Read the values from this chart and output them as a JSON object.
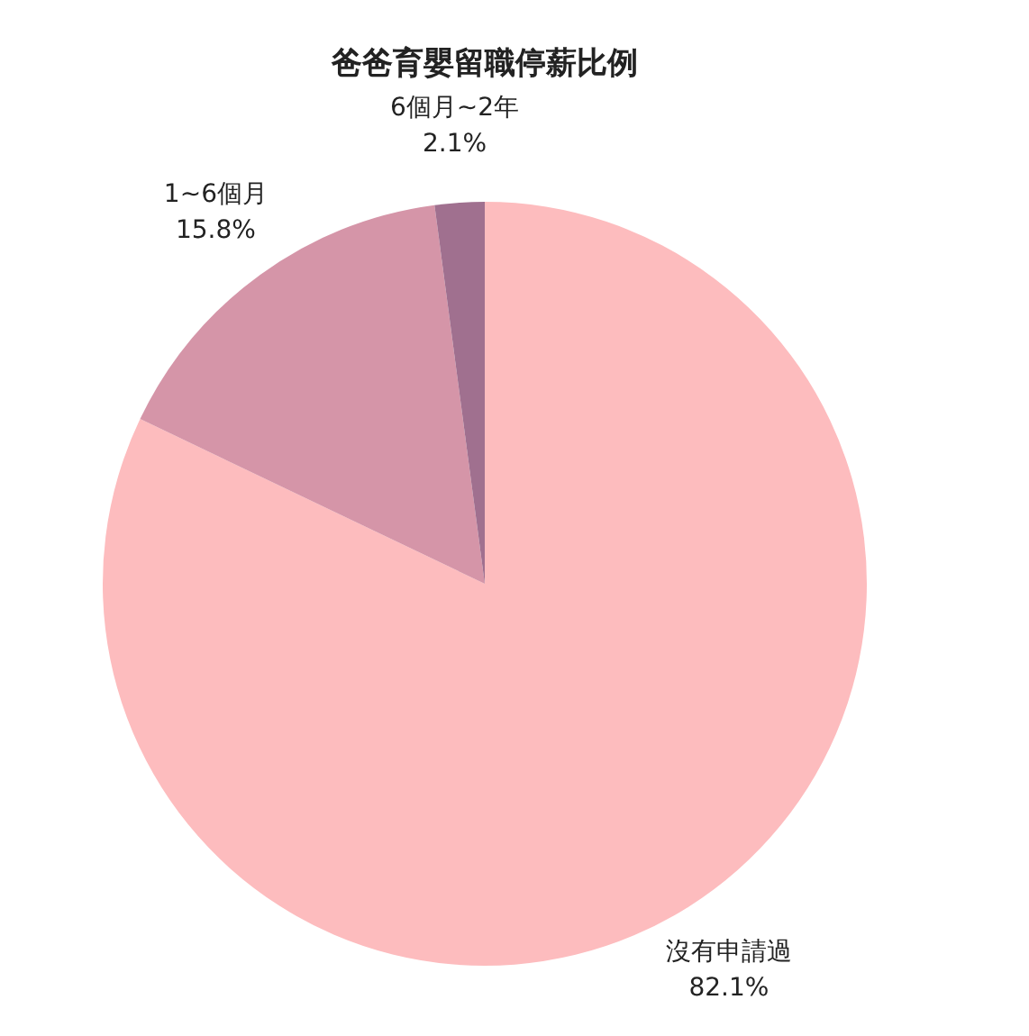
{
  "chart_data": {
    "type": "pie",
    "title": "爸爸育嬰留職停薪比例",
    "categories": [
      "沒有申請過",
      "1~6個月",
      "6個月~2年"
    ],
    "values": [
      82.1,
      15.8,
      2.1
    ],
    "colors": [
      "#fdbcbe",
      "#d595a8",
      "#a0708f"
    ],
    "value_labels": [
      "82.1%",
      "15.8%",
      "2.1%"
    ],
    "legend": false
  }
}
